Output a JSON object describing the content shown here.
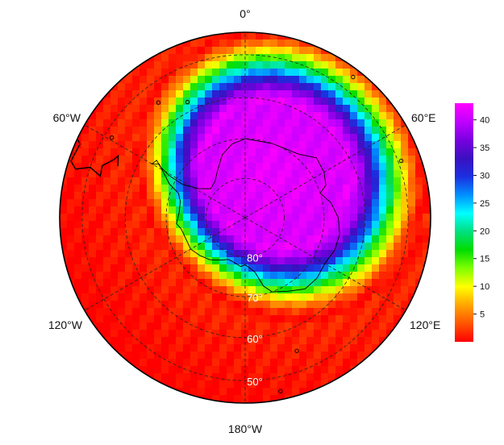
{
  "map": {
    "projection": "south-polar-stereographic",
    "longitude_labels": [
      {
        "id": "lon-0",
        "text": "0°"
      },
      {
        "id": "lon-60e",
        "text": "60°E"
      },
      {
        "id": "lon-120e",
        "text": "120°E"
      },
      {
        "id": "lon-180w",
        "text": "180°W"
      },
      {
        "id": "lon-120w",
        "text": "120°W"
      },
      {
        "id": "lon-60w",
        "text": "60°W"
      }
    ],
    "latitude_labels": [
      {
        "id": "lat-80",
        "text": "80°",
        "lat": -80
      },
      {
        "id": "lat-70",
        "text": "70°",
        "lat": -70
      },
      {
        "id": "lat-60",
        "text": "60°",
        "lat": -60
      },
      {
        "id": "lat-50",
        "text": "50°",
        "lat": -50
      }
    ],
    "graticule": {
      "latitudes": [
        -80,
        -70,
        -60,
        -50
      ],
      "meridian_step_deg": 60,
      "style": "dashed"
    },
    "outer_boundary_lat": -45
  },
  "colorbar": {
    "min": 0,
    "max": 43,
    "ticks": [
      "5",
      "10",
      "15",
      "20",
      "25",
      "30",
      "35",
      "40"
    ],
    "tick_values": [
      5,
      10,
      15,
      20,
      25,
      30,
      35,
      40
    ],
    "colors": [
      "#ff0000",
      "#ff5500",
      "#ffa500",
      "#ffff00",
      "#7fff00",
      "#00dd00",
      "#00e080",
      "#00ffff",
      "#0090ff",
      "#1c2fe0",
      "#3a10c0",
      "#7a00e0",
      "#c000ff",
      "#ff00ff"
    ]
  },
  "field": {
    "units_hint": "",
    "peak_value": 42,
    "hole_center_lon_deg": 30,
    "hole_center_lat_deg": -77
  }
}
